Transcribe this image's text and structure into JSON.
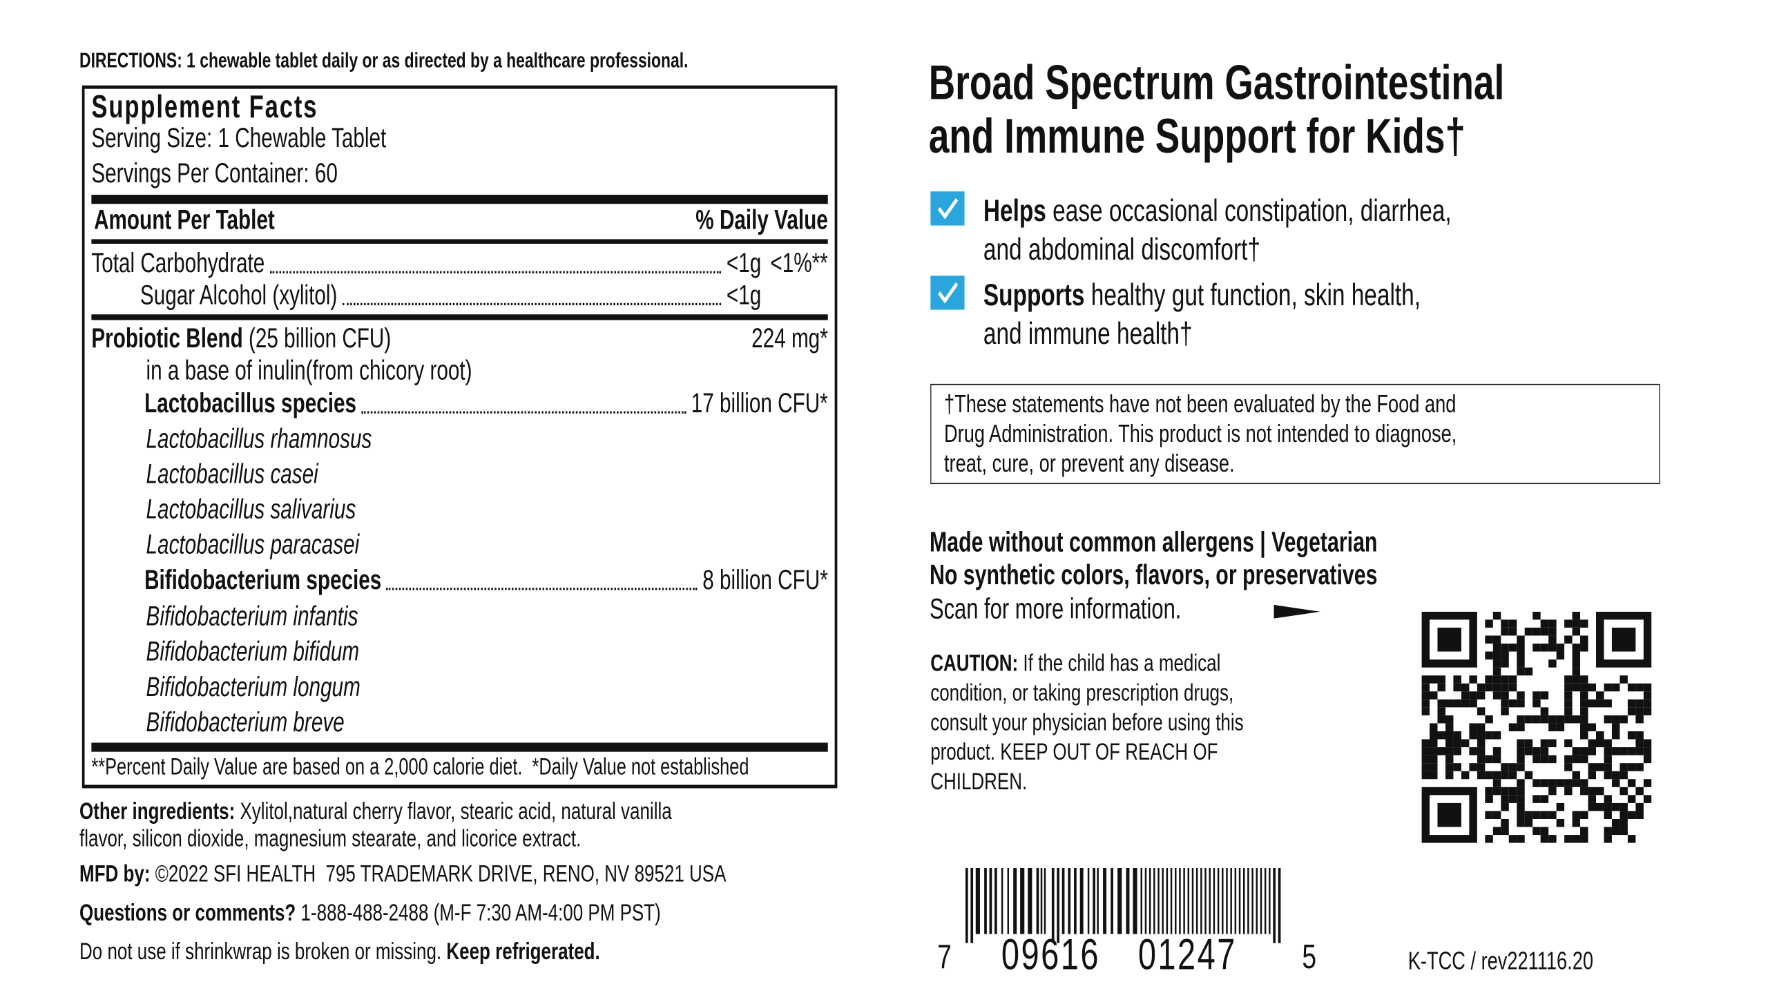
{
  "directions": {
    "label": "DIRECTIONS:",
    "text": "1 chewable tablet daily or as directed by a healthcare professional."
  },
  "supplement_facts": {
    "title": "Supplement Facts",
    "serving_size": "Serving Size: 1 Chewable Tablet",
    "servings_per_container": "Servings Per Container: 60",
    "column_headers": [
      "Amount Per Tablet",
      "% Daily Value"
    ],
    "total_carbohydrate": {
      "name": "Total Carbohydrate",
      "amount": "<1g",
      "daily_value": "<1%**"
    },
    "sugar_alcohol": {
      "name": "Sugar Alcohol (xylitol)",
      "amount": "<1g"
    },
    "probiotic_blend": {
      "name": "Probiotic Blend",
      "detail": "(25 billion CFU)",
      "amount": "224 mg*",
      "base": "in a base of inulin(from chicory root)"
    },
    "lactobacillus": {
      "name": "Lactobacillus species",
      "amount": "17 billion CFU*",
      "strains": [
        "Lactobacillus rhamnosus",
        "Lactobacillus casei",
        "Lactobacillus salivarius",
        "Lactobacillus paracasei"
      ]
    },
    "bifidobacterium": {
      "name": "Bifidobacterium species",
      "amount": "8 billion CFU*",
      "strains": [
        "Bifidobacterium infantis",
        "Bifidobacterium bifidum",
        "Bifidobacterium longum",
        "Bifidobacterium breve"
      ]
    },
    "footnote": "**Percent Daily Value are based on a 2,000 calorie diet.  *Daily Value not established"
  },
  "other_ingredients": {
    "label": "Other ingredients:",
    "lines": [
      "Xylitol,natural cherry flavor, stearic acid, natural vanilla",
      "flavor, silicon dioxide, magnesium stearate, and licorice extract."
    ]
  },
  "manufacturer": {
    "label": "MFD by:",
    "text": "©2022 SFI HEALTH  795 TRADEMARK DRIVE, RENO, NV 89521 USA"
  },
  "questions": {
    "label": "Questions or comments?",
    "text": "1-888-488-2488 (M-F 7:30 AM-4:00 PM PST)"
  },
  "storage": {
    "text": "Do not use if shrinkwrap is broken or missing.",
    "bold": "Keep refrigerated."
  },
  "headline": [
    "Broad Spectrum Gastrointestinal",
    "and Immune Support for Kids†"
  ],
  "benefits": [
    {
      "bold": "Helps",
      "lines": [
        "ease occasional constipation, diarrhea,",
        "and abdominal discomfort†"
      ]
    },
    {
      "bold": "Supports",
      "lines": [
        "healthy gut function, skin health,",
        "and immune health†"
      ]
    }
  ],
  "disclaimer": [
    "†These statements have not been evaluated by the Food and",
    "Drug Administration. This product is not intended to diagnose,",
    "treat, cure, or prevent any disease."
  ],
  "allergens": [
    "Made without common allergens | Vegetarian",
    "No synthetic colors, flavors, or preservatives"
  ],
  "scan": "Scan for more information.",
  "caution": {
    "label": "CAUTION:",
    "lines": [
      "If the child has a medical",
      "condition, or taking prescription drugs,",
      "consult your physician before using this",
      "product. KEEP OUT OF REACH OF",
      "CHILDREN."
    ]
  },
  "barcode": {
    "digits": [
      "7",
      "09616",
      "01247",
      "5"
    ]
  },
  "code": "K-TCC / rev221116.20"
}
